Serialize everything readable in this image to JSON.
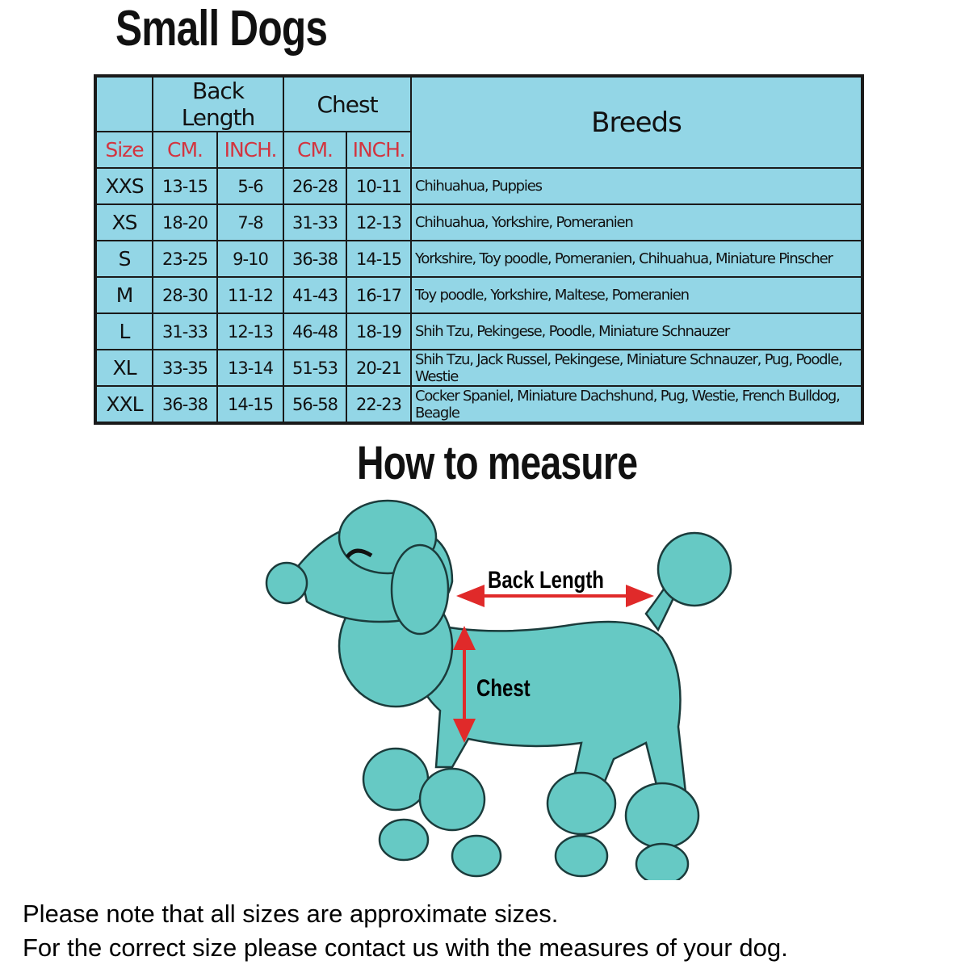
{
  "title": "Small Dogs",
  "table": {
    "group_headers": {
      "back_length": "Back Length",
      "chest": "Chest",
      "breeds": "Breeds"
    },
    "sub_headers": {
      "size": "Size",
      "bl_cm": "CM.",
      "bl_inch": "INCH.",
      "ch_cm": "CM.",
      "ch_inch": "INCH."
    },
    "rows": [
      {
        "size": "XXS",
        "bl_cm": "13-15",
        "bl_inch": "5-6",
        "ch_cm": "26-28",
        "ch_inch": "10-11",
        "breeds": "Chihuahua, Puppies"
      },
      {
        "size": "XS",
        "bl_cm": "18-20",
        "bl_inch": "7-8",
        "ch_cm": "31-33",
        "ch_inch": "12-13",
        "breeds": "Chihuahua, Yorkshire, Pomeranien"
      },
      {
        "size": "S",
        "bl_cm": "23-25",
        "bl_inch": "9-10",
        "ch_cm": "36-38",
        "ch_inch": "14-15",
        "breeds": "Yorkshire, Toy poodle, Pomeranien, Chihuahua, Miniature Pinscher"
      },
      {
        "size": "M",
        "bl_cm": "28-30",
        "bl_inch": "11-12",
        "ch_cm": "41-43",
        "ch_inch": "16-17",
        "breeds": "Toy poodle, Yorkshire, Maltese, Pomeranien"
      },
      {
        "size": "L",
        "bl_cm": "31-33",
        "bl_inch": "12-13",
        "ch_cm": "46-48",
        "ch_inch": "18-19",
        "breeds": "Shih Tzu, Pekingese, Poodle, Miniature Schnauzer"
      },
      {
        "size": "XL",
        "bl_cm": "33-35",
        "bl_inch": "13-14",
        "ch_cm": "51-53",
        "ch_inch": "20-21",
        "breeds": "Shih Tzu, Jack Russel, Pekingese, Miniature Schnauzer, Pug, Poodle, Westie"
      },
      {
        "size": "XXL",
        "bl_cm": "36-38",
        "bl_inch": "14-15",
        "ch_cm": "56-58",
        "ch_inch": "22-23",
        "breeds": "Cocker Spaniel, Miniature Dachshund, Pug, Westie, French Bulldog, Beagle"
      }
    ]
  },
  "measure": {
    "title": "How to measure",
    "back_length_label": "Back Length",
    "chest_label": "Chest"
  },
  "notes": [
    "Please note that all sizes are approximate sizes.",
    "For the correct size please contact us with the measures of your dog."
  ],
  "colors": {
    "table_bg": "#93d6e6",
    "header_red": "#d3343f",
    "dog": "#66c9c4",
    "arrow": "#e02a2a"
  }
}
